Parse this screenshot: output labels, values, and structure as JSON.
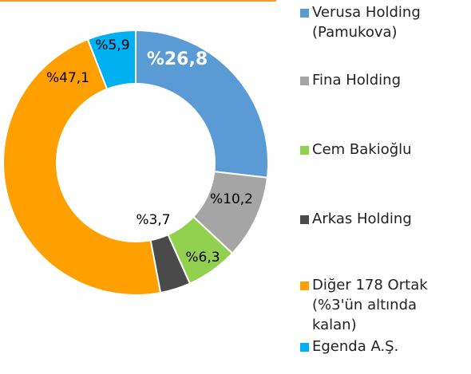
{
  "chart_data": {
    "type": "donut",
    "categories": [
      "Verusa Holding (Pamukova)",
      "Fina Holding",
      "Cem Bakioğlu",
      "Arkas Holding",
      "Diğer 178 Ortak (%3'ün altında kalan)",
      "Egenda A.Ş."
    ],
    "values": [
      26.8,
      10.2,
      6.3,
      3.7,
      47.1,
      5.9
    ],
    "value_labels": [
      "%26,8",
      "%10,2",
      "%6,3",
      "%3,7",
      "%47,1",
      "%5,9"
    ],
    "colors": [
      "#5b9bd5",
      "#a5a5a5",
      "#92d050",
      "#4a4a4a",
      "#ff9f00",
      "#00b0f0"
    ]
  }
}
